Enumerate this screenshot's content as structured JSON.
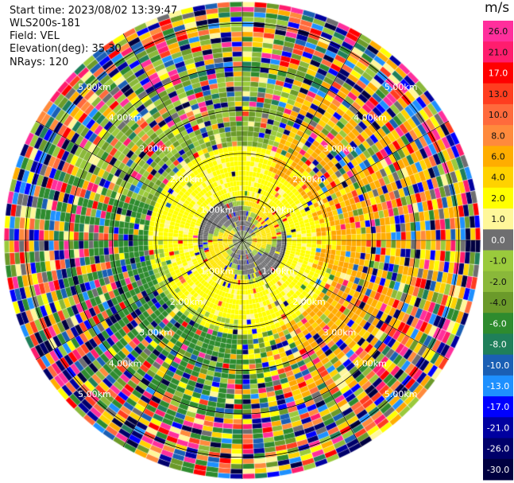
{
  "info": {
    "start_time": "Start time: 2023/08/02 13:39:47",
    "instrument": "WLS200s-181",
    "field": "Field: VEL",
    "elevation": "Elevation(deg): 35.30",
    "nrays": "NRays: 120"
  },
  "chart_data": {
    "type": "heatmap",
    "projection": "polar-ppi",
    "field": "VEL",
    "units": "m/s",
    "elevation_deg": 35.3,
    "nrays": 120,
    "range_labels": [
      "1.00km",
      "2.00km",
      "3.00km",
      "4.00km",
      "5.00km"
    ],
    "range_rings_km": [
      1,
      2,
      3,
      4,
      5
    ],
    "max_range_km": 5.5,
    "colorbar": {
      "title": "m/s",
      "ticks": [
        "26.0",
        "21.0",
        "17.0",
        "13.0",
        "10.0",
        "8.0",
        "6.0",
        "4.0",
        "2.0",
        "1.0",
        "0.0",
        "-1.0",
        "-2.0",
        "-4.0",
        "-6.0",
        "-8.0",
        "-10.0",
        "-13.0",
        "-17.0",
        "-21.0",
        "-26.0",
        "-30.0"
      ],
      "colors": [
        "#ff2f9c",
        "#ff1d6e",
        "#ff0000",
        "#ff3d1f",
        "#ff6a3c",
        "#ff8a3c",
        "#ffad00",
        "#ffd200",
        "#ffff00",
        "#fff79a",
        "#6e6e70",
        "#9aca3c",
        "#8ab83a",
        "#6b9a2a",
        "#2e8b2e",
        "#1f7f5a",
        "#1a5fb4",
        "#1e90ff",
        "#0000ff",
        "#0000a0",
        "#00006a",
        "#000040"
      ]
    },
    "pattern": {
      "inner_ring_km": 1.05,
      "inner_colors": [
        "#6e6e70",
        "#9aca3c",
        "#fff000"
      ],
      "mid_ring_km": 2.2,
      "mid_dominant": "#ffff00",
      "northeast_dominant": "#ffa500",
      "southwest_dominant": "#2e8b2e",
      "outer_noise": true
    }
  }
}
